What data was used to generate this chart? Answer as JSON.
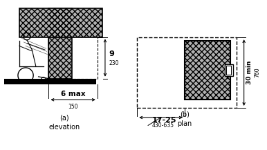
{
  "bg_color": "#ffffff",
  "line_color": "#000000",
  "gray_fill": "#b0b0b0",
  "label_9": "9",
  "label_230": "230",
  "label_6max": "6 max",
  "label_150": "150",
  "label_1725": "17-25",
  "label_430635": "430-635",
  "label_30min": "30 min",
  "label_760": "760",
  "title_a": "(a)\nelevation",
  "title_b": "(b)\nplan"
}
